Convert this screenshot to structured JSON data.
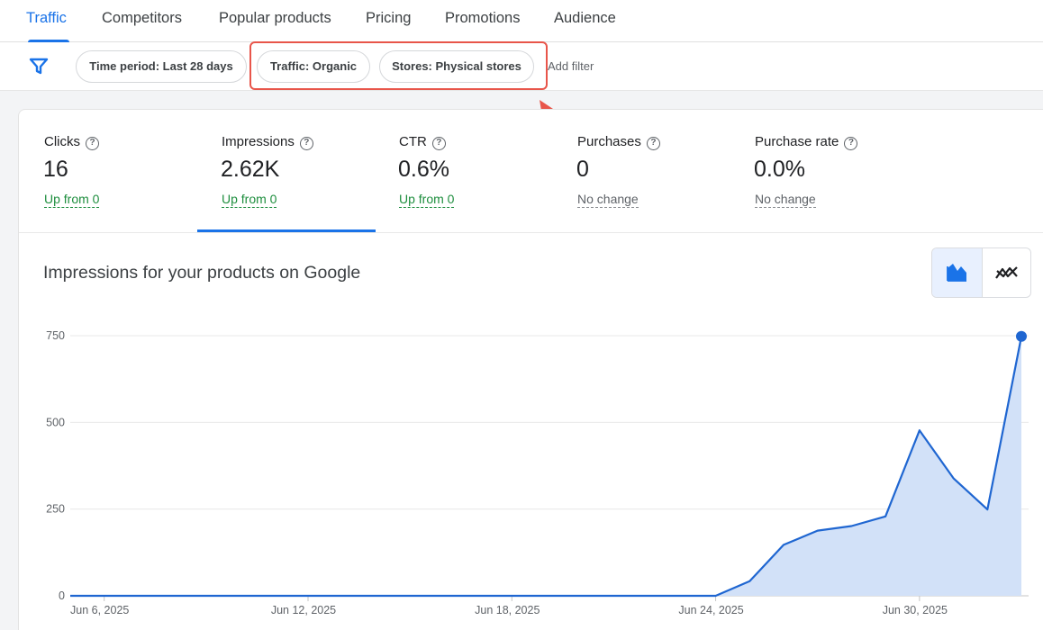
{
  "tabs": [
    {
      "label": "Traffic",
      "active": true
    },
    {
      "label": "Competitors"
    },
    {
      "label": "Popular products"
    },
    {
      "label": "Pricing"
    },
    {
      "label": "Promotions"
    },
    {
      "label": "Audience"
    }
  ],
  "filters": {
    "icon": "filter-icon",
    "chips": [
      {
        "label": "Time period: Last 28 days"
      },
      {
        "label": "Traffic: Organic"
      },
      {
        "label": "Stores: Physical stores"
      }
    ],
    "add_label": "Add filter"
  },
  "metrics": [
    {
      "label": "Clicks",
      "value": "16",
      "change": "Up from 0",
      "trend": "up"
    },
    {
      "label": "Impressions",
      "value": "2.62K",
      "change": "Up from 0",
      "trend": "up",
      "selected": true
    },
    {
      "label": "CTR",
      "value": "0.6%",
      "change": "Up from 0",
      "trend": "up"
    },
    {
      "label": "Purchases",
      "value": "0",
      "change": "No change",
      "trend": "flat"
    },
    {
      "label": "Purchase rate",
      "value": "0.0%",
      "change": "No change",
      "trend": "flat"
    }
  ],
  "help_glyph": "?",
  "chart_title": "Impressions for your products on Google",
  "chart_toggle": [
    {
      "icon": "area-chart-icon",
      "selected": true
    },
    {
      "icon": "line-chart-icon",
      "selected": false
    }
  ],
  "colors": {
    "accent": "#1a73e8",
    "line": "#1f66d1",
    "fill": "#d2e1f8",
    "positive": "#1e8e3e",
    "annotation": "#e8554a"
  },
  "chart_data": {
    "type": "area",
    "x": [
      "Jun 5, 2025",
      "Jun 6, 2025",
      "Jun 7, 2025",
      "Jun 8, 2025",
      "Jun 9, 2025",
      "Jun 10, 2025",
      "Jun 11, 2025",
      "Jun 12, 2025",
      "Jun 13, 2025",
      "Jun 14, 2025",
      "Jun 15, 2025",
      "Jun 16, 2025",
      "Jun 17, 2025",
      "Jun 18, 2025",
      "Jun 19, 2025",
      "Jun 20, 2025",
      "Jun 21, 2025",
      "Jun 22, 2025",
      "Jun 23, 2025",
      "Jun 24, 2025",
      "Jun 25, 2025",
      "Jun 26, 2025",
      "Jun 27, 2025",
      "Jun 28, 2025",
      "Jun 29, 2025",
      "Jun 30, 2025",
      "Jul 1, 2025",
      "Jul 2, 2025",
      "Jul 3, 2025"
    ],
    "values": [
      0,
      0,
      0,
      0,
      0,
      0,
      0,
      0,
      0,
      0,
      0,
      0,
      0,
      0,
      0,
      0,
      0,
      0,
      0,
      0,
      42,
      147,
      188,
      201,
      229,
      477,
      339,
      249,
      748
    ],
    "x_ticks": [
      "Jun 6, 2025",
      "Jun 12, 2025",
      "Jun 18, 2025",
      "Jun 24, 2025",
      "Jun 30, 2025"
    ],
    "y_ticks": [
      0,
      250,
      500,
      750
    ],
    "ylim": [
      0,
      750
    ],
    "grid": true,
    "highlight_last_point": true
  }
}
